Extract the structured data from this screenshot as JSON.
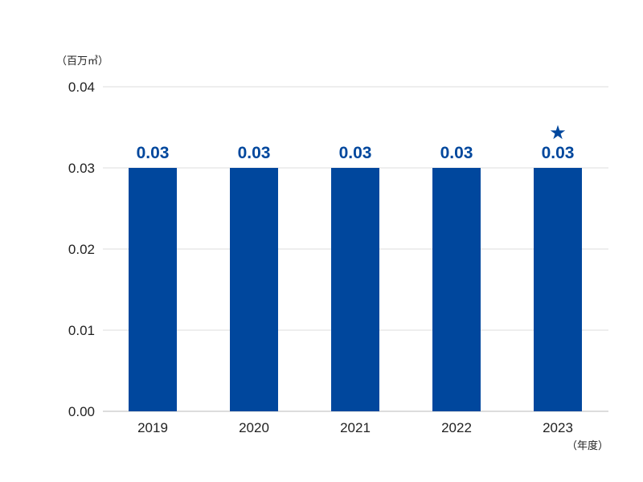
{
  "chart_data": {
    "type": "bar",
    "categories": [
      "2019",
      "2020",
      "2021",
      "2022",
      "2023"
    ],
    "values": [
      0.03,
      0.03,
      0.03,
      0.03,
      0.03
    ],
    "value_labels": [
      "0.03",
      "0.03",
      "0.03",
      "0.03",
      "0.03"
    ],
    "y_ticks": [
      "0.00",
      "0.01",
      "0.02",
      "0.03",
      "0.04"
    ],
    "ylim": [
      0,
      0.04
    ],
    "ylabel": "（百万㎥）",
    "xlabel": "（年度）",
    "grid": true,
    "highlight": {
      "category": "2023",
      "marker": "★"
    },
    "colors": {
      "bar": "#00479D",
      "label": "#00479D",
      "grid": "#DDDDDD",
      "axis": "#BBBBBB",
      "text": "#222222"
    }
  }
}
